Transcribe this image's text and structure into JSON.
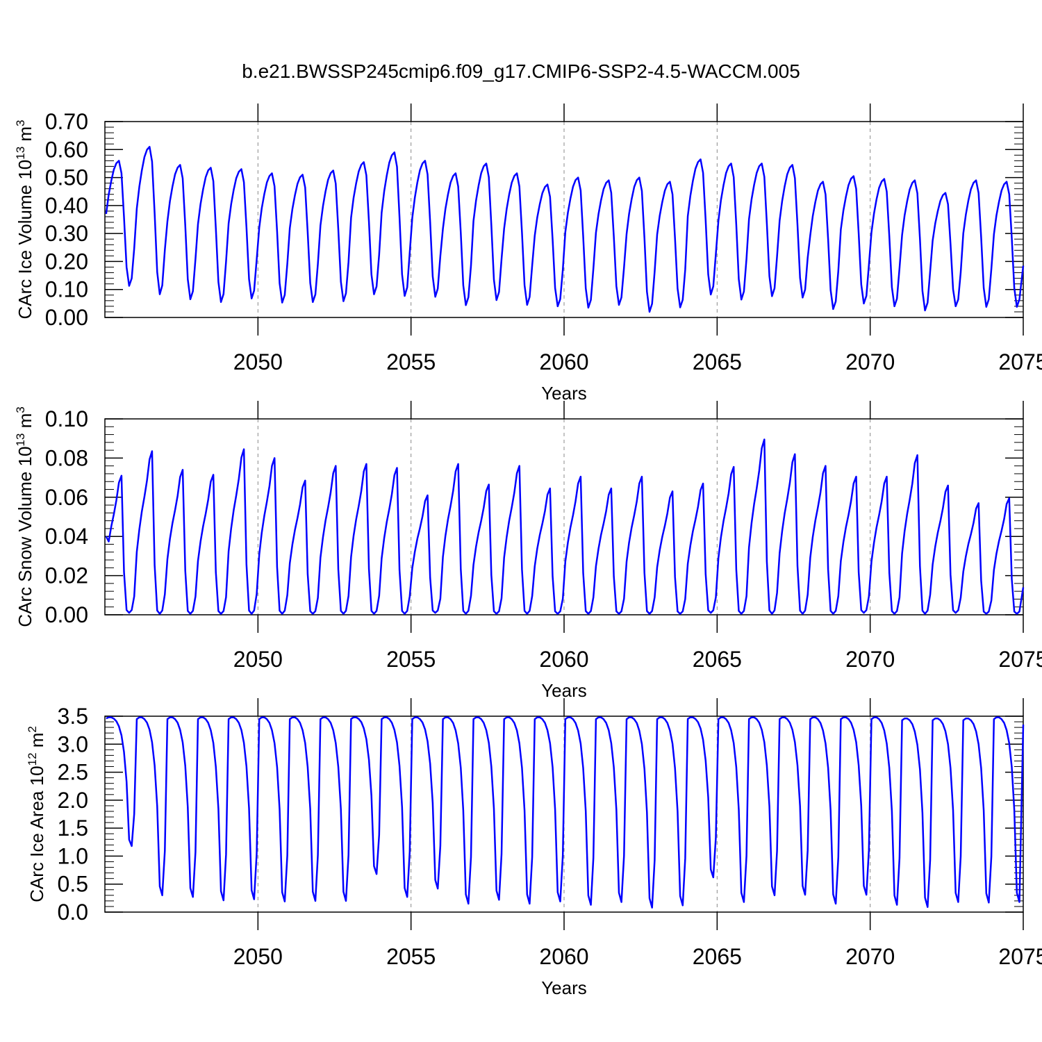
{
  "figure": {
    "title": "b.e21.BWSSP245cmip6.f09_g17.CMIP6-SSP2-4.5-WACCM.005"
  },
  "chart_data": [
    {
      "type": "line",
      "xlabel": "Years",
      "ylabel": "CArc Ice Volume 10",
      "ylabel_exp": "13",
      "ylabel_unit": " m",
      "ylabel_unit_exp": "3",
      "xlim": [
        2045.0,
        2075.0
      ],
      "ylim": [
        0.0,
        0.7
      ],
      "xticks": [
        2050,
        2055,
        2060,
        2065,
        2070,
        2075
      ],
      "yticks": [
        0.0,
        0.1,
        0.2,
        0.3,
        0.4,
        0.5,
        0.6,
        0.7
      ],
      "yticklabels": [
        "0.00",
        "0.10",
        "0.20",
        "0.30",
        "0.40",
        "0.50",
        "0.60",
        "0.70"
      ],
      "grid": "dashed vertical lines at major x ticks",
      "color": "#0000ff",
      "annual_max": [
        0.56,
        0.61,
        0.545,
        0.535,
        0.53,
        0.515,
        0.51,
        0.525,
        0.555,
        0.59,
        0.56,
        0.515,
        0.55,
        0.515,
        0.475,
        0.5,
        0.49,
        0.5,
        0.485,
        0.565,
        0.55,
        0.55,
        0.545,
        0.485,
        0.505,
        0.495,
        0.49,
        0.445,
        0.49,
        0.485
      ],
      "annual_min": [
        0.113,
        0.083,
        0.065,
        0.055,
        0.068,
        0.053,
        0.055,
        0.058,
        0.083,
        0.077,
        0.074,
        0.044,
        0.062,
        0.045,
        0.04,
        0.035,
        0.045,
        0.02,
        0.036,
        0.082,
        0.064,
        0.076,
        0.071,
        0.03,
        0.05,
        0.04,
        0.025,
        0.04,
        0.038,
        0.038
      ],
      "start_value": 0.37,
      "end_value": 0.185
    },
    {
      "type": "line",
      "xlabel": "Years",
      "ylabel": "CArc Snow Volume 10",
      "ylabel_exp": "13",
      "ylabel_unit": " m",
      "ylabel_unit_exp": "3",
      "xlim": [
        2045.0,
        2075.0
      ],
      "ylim": [
        0.0,
        0.1
      ],
      "xticks": [
        2050,
        2055,
        2060,
        2065,
        2070,
        2075
      ],
      "yticks": [
        0.0,
        0.02,
        0.04,
        0.06,
        0.08,
        0.1
      ],
      "yticklabels": [
        "0.00",
        "0.02",
        "0.04",
        "0.06",
        "0.08",
        "0.10"
      ],
      "grid": "dashed vertical lines at major x ticks",
      "color": "#0000ff",
      "annual_max": [
        0.071,
        0.0835,
        0.074,
        0.0715,
        0.0845,
        0.08,
        0.0685,
        0.076,
        0.077,
        0.075,
        0.061,
        0.077,
        0.0665,
        0.076,
        0.0645,
        0.0705,
        0.0645,
        0.0705,
        0.063,
        0.067,
        0.0755,
        0.0895,
        0.082,
        0.076,
        0.0705,
        0.0705,
        0.0815,
        0.066,
        0.057,
        0.0595
      ],
      "annual_min": [
        0.001,
        0.0005,
        0.0005,
        0.0005,
        0.0005,
        0.0005,
        0.0005,
        0.0005,
        0.0005,
        0.0005,
        0.001,
        0.0005,
        0.0005,
        0.0005,
        0.0005,
        0.0005,
        0.0005,
        0.0005,
        0.0005,
        0.001,
        0.0005,
        0.0005,
        0.0005,
        0.0005,
        0.001,
        0.0005,
        0.0005,
        0.001,
        0.0005,
        0.0005
      ],
      "start_value": 0.04,
      "end_value": 0.014
    },
    {
      "type": "line",
      "xlabel": "Years",
      "ylabel": "CArc Ice Area 10",
      "ylabel_exp": "12",
      "ylabel_unit": " m",
      "ylabel_unit_exp": "2",
      "xlim": [
        2045.0,
        2075.0
      ],
      "ylim": [
        0.0,
        3.5
      ],
      "xticks": [
        2050,
        2055,
        2060,
        2065,
        2070,
        2075
      ],
      "yticks": [
        0.0,
        0.5,
        1.0,
        1.5,
        2.0,
        2.5,
        3.0,
        3.5
      ],
      "yticklabels": [
        "0.0",
        "0.5",
        "1.0",
        "1.5",
        "2.0",
        "2.5",
        "3.0",
        "3.5"
      ],
      "grid": "dashed vertical lines at major x ticks",
      "color": "#0000ff",
      "annual_max": [
        3.48,
        3.48,
        3.48,
        3.48,
        3.48,
        3.48,
        3.48,
        3.48,
        3.48,
        3.48,
        3.48,
        3.48,
        3.48,
        3.48,
        3.48,
        3.48,
        3.48,
        3.48,
        3.48,
        3.48,
        3.48,
        3.48,
        3.48,
        3.48,
        3.48,
        3.48,
        3.46,
        3.46,
        3.46,
        3.48
      ],
      "annual_min": [
        1.18,
        0.3,
        0.27,
        0.21,
        0.23,
        0.19,
        0.2,
        0.2,
        0.68,
        0.27,
        0.42,
        0.15,
        0.22,
        0.15,
        0.19,
        0.13,
        0.18,
        0.08,
        0.12,
        0.62,
        0.18,
        0.3,
        0.31,
        0.15,
        0.31,
        0.13,
        0.09,
        0.18,
        0.17,
        0.18
      ],
      "start_value": 3.46,
      "end_value": 3.35
    }
  ]
}
